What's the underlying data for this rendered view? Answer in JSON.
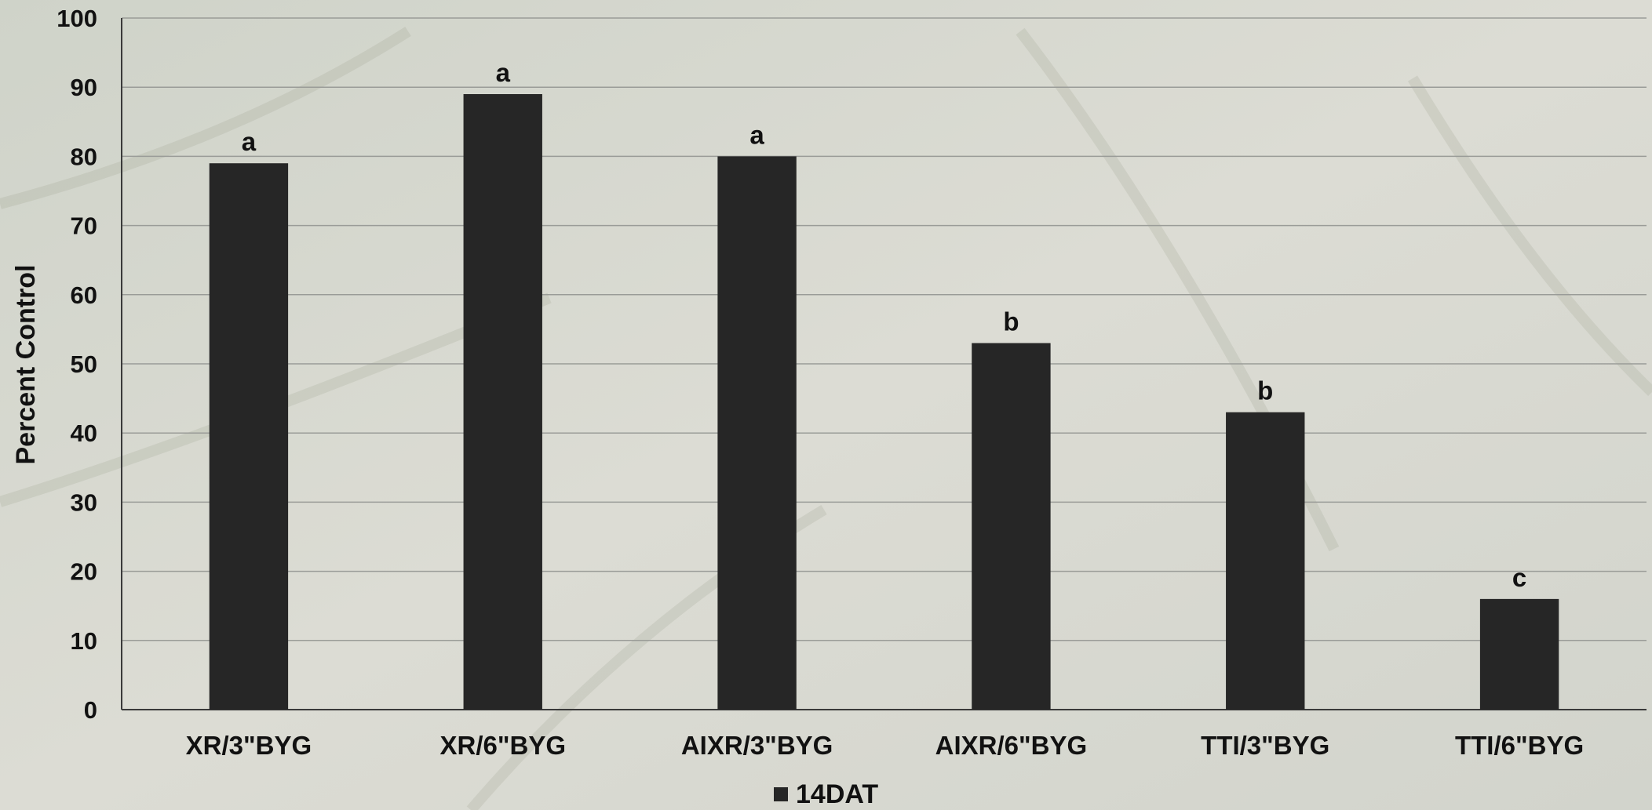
{
  "chart_data": {
    "type": "bar",
    "title": "",
    "xlabel": "",
    "ylabel": "Percent Control",
    "ylim": [
      0,
      100
    ],
    "yticks": [
      0,
      10,
      20,
      30,
      40,
      50,
      60,
      70,
      80,
      90,
      100
    ],
    "grid": true,
    "legend_position": "bottom-center",
    "categories": [
      "XR/3\"BYG",
      "XR/6\"BYG",
      "AIXR/3\"BYG",
      "AIXR/6\"BYG",
      "TTI/3\"BYG",
      "TTI/6\"BYG"
    ],
    "series": [
      {
        "name": "14DAT",
        "values": [
          79,
          89,
          80,
          53,
          43,
          16
        ],
        "labels": [
          "a",
          "a",
          "a",
          "b",
          "b",
          "c"
        ],
        "color": "#262626"
      }
    ]
  },
  "colors": {
    "background": "#d8dad4",
    "gridline": "#9a9c98",
    "axis": "#3a3a3a",
    "bar": "#262626",
    "text": "#111111"
  }
}
